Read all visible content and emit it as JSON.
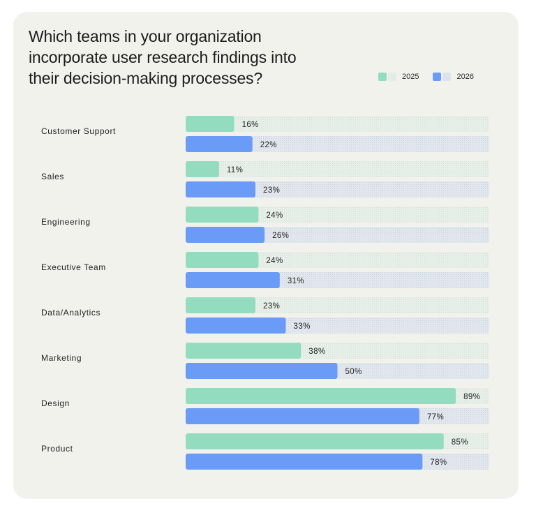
{
  "colors": {
    "card_background": "#f2f2ed",
    "series_2025": "#93dcc0",
    "series_2026": "#6a9cf7",
    "track_2025": "#e4ede5",
    "track_2026": "#dde3ea"
  },
  "chart_data": {
    "type": "bar",
    "orientation": "horizontal",
    "title": "Which teams in your organization incorporate user research findings into their decision-making processes?",
    "legend_position": "top-right",
    "unit": "%",
    "xlim": [
      0,
      100
    ],
    "categories": [
      "Customer Support",
      "Sales",
      "Engineering",
      "Executive Team",
      "Data/Analytics",
      "Marketing",
      "Design",
      "Product"
    ],
    "series": [
      {
        "name": "2025",
        "color": "#93dcc0",
        "values": [
          16,
          11,
          24,
          24,
          23,
          38,
          89,
          85
        ]
      },
      {
        "name": "2026",
        "color": "#6a9cf7",
        "values": [
          22,
          23,
          26,
          31,
          33,
          50,
          77,
          78
        ]
      }
    ]
  }
}
